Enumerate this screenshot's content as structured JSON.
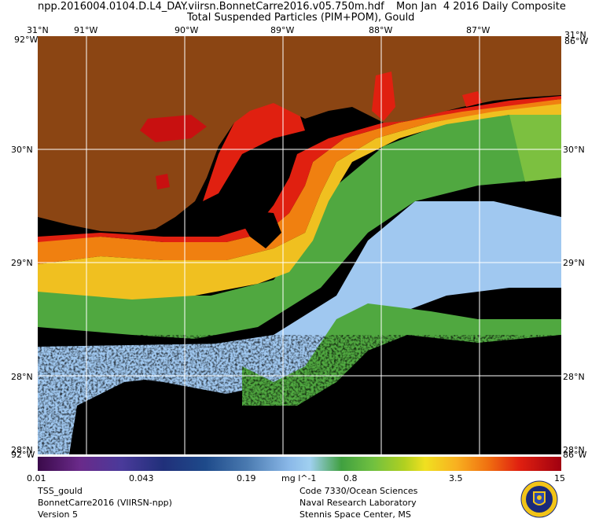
{
  "header": {
    "line1_left": "npp.2016004.0104.D.L4_DAY.viirsn.BonnetCarre2016.v05.750m.hdf",
    "line1_right": "Mon Jan  4 2016 Daily Composite",
    "line2": "Total Suspended Particles (PIM+POM), Gould"
  },
  "longitude_labels": [
    "91°W",
    "90°W",
    "89°W",
    "88°W",
    "87°W"
  ],
  "latitude_labels": [
    "30°N",
    "29°N",
    "28°N"
  ],
  "corner_labels": {
    "top_left_lat": "31°N",
    "top_left_lon": "92°W",
    "top_right_lat": "31°N",
    "top_right_lon": "86°W",
    "bottom_left_lat": "28°N",
    "bottom_left_lon": "92°W",
    "bottom_right_lat": "28°N",
    "bottom_right_lon": "86°W"
  },
  "colorbar": {
    "ticks": [
      "0.01",
      "0.043",
      "0.19",
      "0.8",
      "3.5",
      "15"
    ],
    "units": "mg l^-1"
  },
  "footer_left": [
    "TSS_gould",
    "BonnetCarre2016 (VIIRSN-npp)",
    "Version 5"
  ],
  "footer_right": [
    "Code 7330/Ocean Sciences",
    "Naval Research Laboratory",
    "Stennis Space Center, MS"
  ],
  "colors": {
    "land": "#8b4513",
    "high_tss": "#e02010",
    "mid_tss": "#60b040",
    "low_tss": "#a0c8f0",
    "no_data": "#000000"
  }
}
